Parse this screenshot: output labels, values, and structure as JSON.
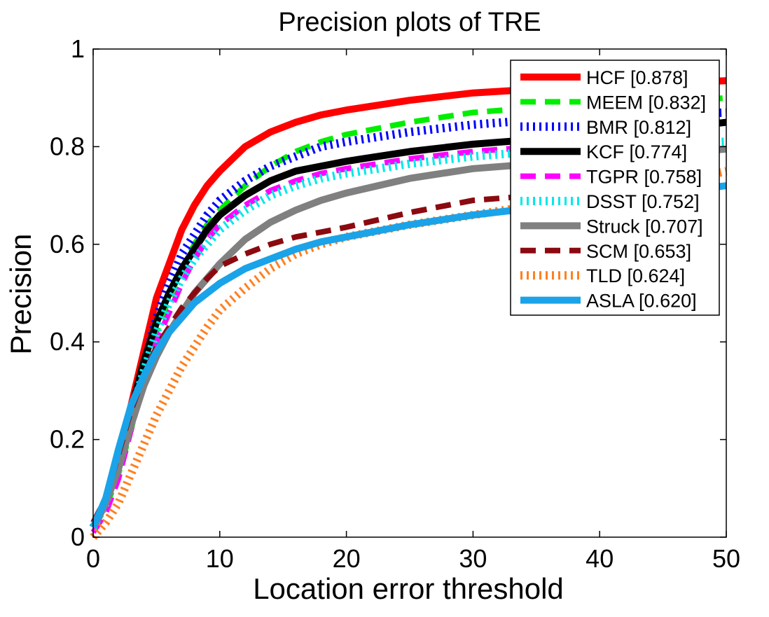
{
  "chart_data": {
    "type": "line",
    "title": "Precision plots of TRE",
    "xlabel": "Location error threshold",
    "ylabel": "Precision",
    "xlim": [
      0,
      50
    ],
    "ylim": [
      0,
      1
    ],
    "xticks": [
      0,
      10,
      20,
      30,
      40,
      50
    ],
    "yticks": [
      0,
      0.2,
      0.4,
      0.6,
      0.8,
      1
    ],
    "xtick_labels": [
      "0",
      "10",
      "20",
      "30",
      "40",
      "50"
    ],
    "ytick_labels": [
      "0",
      "0.2",
      "0.4",
      "0.6",
      "0.8",
      "1"
    ],
    "grid": false,
    "legend_position": "top-right",
    "x": [
      0,
      1,
      2,
      3,
      4,
      5,
      6,
      7,
      8,
      9,
      10,
      12,
      14,
      16,
      18,
      20,
      25,
      30,
      35,
      40,
      45,
      50
    ],
    "series": [
      {
        "name": "HCF [0.878]",
        "color": "#ff0000",
        "style": "solid",
        "width": 10,
        "values": [
          0.02,
          0.07,
          0.16,
          0.27,
          0.38,
          0.49,
          0.56,
          0.63,
          0.68,
          0.72,
          0.75,
          0.8,
          0.83,
          0.85,
          0.865,
          0.875,
          0.895,
          0.91,
          0.918,
          0.925,
          0.93,
          0.935
        ]
      },
      {
        "name": "MEEM [0.832]",
        "color": "#00ee00",
        "style": "dashed",
        "width": 8,
        "values": [
          0.02,
          0.06,
          0.13,
          0.22,
          0.33,
          0.42,
          0.49,
          0.55,
          0.6,
          0.64,
          0.67,
          0.72,
          0.76,
          0.79,
          0.81,
          0.825,
          0.85,
          0.87,
          0.88,
          0.885,
          0.89,
          0.9
        ]
      },
      {
        "name": "BMR [0.812]",
        "color": "#0000ff",
        "style": "dotted",
        "width": 4,
        "values": [
          0.02,
          0.07,
          0.15,
          0.25,
          0.35,
          0.45,
          0.52,
          0.58,
          0.62,
          0.66,
          0.69,
          0.73,
          0.76,
          0.78,
          0.8,
          0.81,
          0.83,
          0.845,
          0.855,
          0.86,
          0.865,
          0.87
        ]
      },
      {
        "name": "KCF [0.774]",
        "color": "#000000",
        "style": "solid",
        "width": 10,
        "values": [
          0.02,
          0.07,
          0.16,
          0.26,
          0.36,
          0.44,
          0.5,
          0.55,
          0.59,
          0.63,
          0.66,
          0.7,
          0.73,
          0.75,
          0.76,
          0.77,
          0.79,
          0.805,
          0.815,
          0.825,
          0.835,
          0.85
        ]
      },
      {
        "name": "TGPR [0.758]",
        "color": "#ff00ff",
        "style": "dashed",
        "width": 8,
        "values": [
          0.01,
          0.05,
          0.12,
          0.22,
          0.32,
          0.4,
          0.46,
          0.52,
          0.57,
          0.61,
          0.64,
          0.68,
          0.71,
          0.73,
          0.745,
          0.755,
          0.775,
          0.79,
          0.8,
          0.81,
          0.815,
          0.825
        ]
      },
      {
        "name": "DSST [0.752]",
        "color": "#00e8e8",
        "style": "dotted",
        "width": 4,
        "values": [
          0.02,
          0.07,
          0.15,
          0.25,
          0.34,
          0.42,
          0.48,
          0.53,
          0.57,
          0.6,
          0.63,
          0.67,
          0.7,
          0.72,
          0.735,
          0.745,
          0.765,
          0.78,
          0.79,
          0.8,
          0.805,
          0.81
        ]
      },
      {
        "name": "Struck [0.707]",
        "color": "#808080",
        "style": "solid",
        "width": 10,
        "values": [
          0.02,
          0.07,
          0.14,
          0.23,
          0.31,
          0.37,
          0.42,
          0.46,
          0.5,
          0.53,
          0.56,
          0.61,
          0.645,
          0.67,
          0.69,
          0.705,
          0.735,
          0.755,
          0.765,
          0.775,
          0.785,
          0.795
        ]
      },
      {
        "name": "SCM [0.653]",
        "color": "#8b0a10",
        "style": "dashed",
        "width": 8,
        "values": [
          0.03,
          0.08,
          0.17,
          0.26,
          0.33,
          0.39,
          0.43,
          0.47,
          0.5,
          0.53,
          0.555,
          0.58,
          0.6,
          0.615,
          0.625,
          0.635,
          0.665,
          0.69,
          0.7,
          0.71,
          0.72,
          0.745
        ]
      },
      {
        "name": "TLD [0.624]",
        "color": "#ff8020",
        "style": "dotted",
        "width": 4,
        "values": [
          0.0,
          0.03,
          0.07,
          0.13,
          0.19,
          0.25,
          0.3,
          0.35,
          0.39,
          0.43,
          0.465,
          0.51,
          0.55,
          0.58,
          0.6,
          0.615,
          0.64,
          0.66,
          0.68,
          0.7,
          0.72,
          0.75
        ]
      },
      {
        "name": "ASLA [0.620]",
        "color": "#1aa3e8",
        "style": "solid",
        "width": 10,
        "values": [
          0.02,
          0.08,
          0.18,
          0.27,
          0.33,
          0.38,
          0.42,
          0.45,
          0.48,
          0.5,
          0.52,
          0.55,
          0.57,
          0.59,
          0.605,
          0.615,
          0.64,
          0.66,
          0.675,
          0.69,
          0.705,
          0.72
        ]
      }
    ]
  }
}
